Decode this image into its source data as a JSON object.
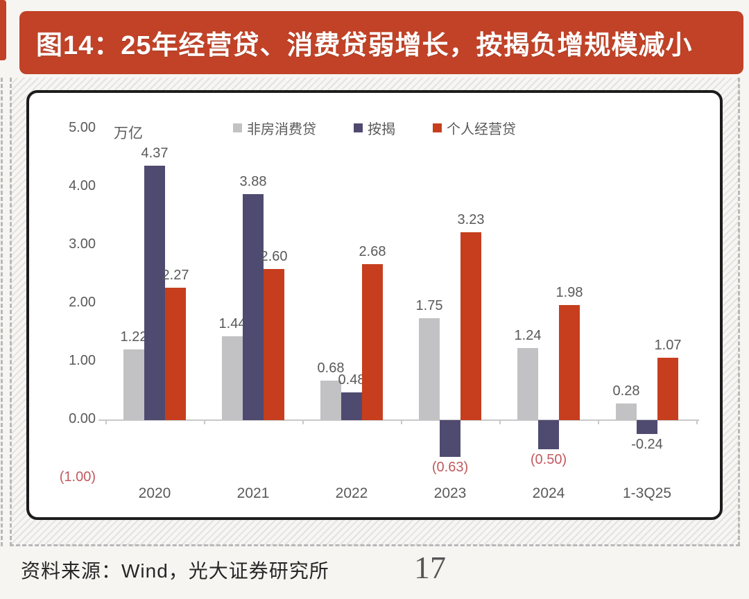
{
  "page": {
    "title_banner": "图14：25年经营贷、消费贷弱增长，按揭负增规模减小",
    "source_note": "资料来源：Wind，光大证券研究所",
    "page_number": "17"
  },
  "colors": {
    "banner_bg": "#c14227",
    "banner_text": "#ffffff",
    "bar_consumer_gray": "#c2c2c4",
    "bar_mortgage_navy": "#4f4a70",
    "bar_business_red": "#c63e1e",
    "label_default": "#595959",
    "label_negative_red": "#c2595e",
    "axis_line": "#c8c8c8",
    "panel_border": "#1c1c1c"
  },
  "chart_data": {
    "type": "bar",
    "title": "",
    "unit_label": "万亿",
    "grid": false,
    "legend_position": "top-center",
    "categories": [
      "2020",
      "2021",
      "2022",
      "2023",
      "2024",
      "1-3Q25"
    ],
    "series": [
      {
        "name": "非房消费贷",
        "color_key": "bar_consumer_gray",
        "values": [
          1.22,
          1.44,
          0.68,
          1.75,
          1.24,
          0.28
        ],
        "labels": [
          "1.22",
          "1.44",
          "0.68",
          "1.75",
          "1.24",
          "0.28"
        ],
        "label_red": [
          false,
          false,
          false,
          false,
          false,
          false
        ]
      },
      {
        "name": "按揭",
        "color_key": "bar_mortgage_navy",
        "values": [
          4.37,
          3.88,
          0.48,
          -0.63,
          -0.5,
          -0.24
        ],
        "labels": [
          "4.37",
          "3.88",
          "0.48",
          "(0.63)",
          "(0.50)",
          "-0.24"
        ],
        "label_red": [
          false,
          false,
          false,
          true,
          true,
          false
        ]
      },
      {
        "name": "个人经营贷",
        "color_key": "bar_business_red",
        "values": [
          2.27,
          2.6,
          2.68,
          3.23,
          1.98,
          1.07
        ],
        "labels": [
          "2.27",
          "2.60",
          "2.68",
          "3.23",
          "1.98",
          "1.07"
        ],
        "label_red": [
          false,
          false,
          false,
          false,
          false,
          false
        ]
      }
    ],
    "y_axis": {
      "min": -1,
      "max": 5,
      "ticks": [
        {
          "v": 5,
          "t": "5.00",
          "red": false
        },
        {
          "v": 4,
          "t": "4.00",
          "red": false
        },
        {
          "v": 3,
          "t": "3.00",
          "red": false
        },
        {
          "v": 2,
          "t": "2.00",
          "red": false
        },
        {
          "v": 1,
          "t": "1.00",
          "red": false
        },
        {
          "v": 0,
          "t": "0.00",
          "red": false
        },
        {
          "v": -1,
          "t": "(1.00)",
          "red": true
        }
      ]
    }
  }
}
